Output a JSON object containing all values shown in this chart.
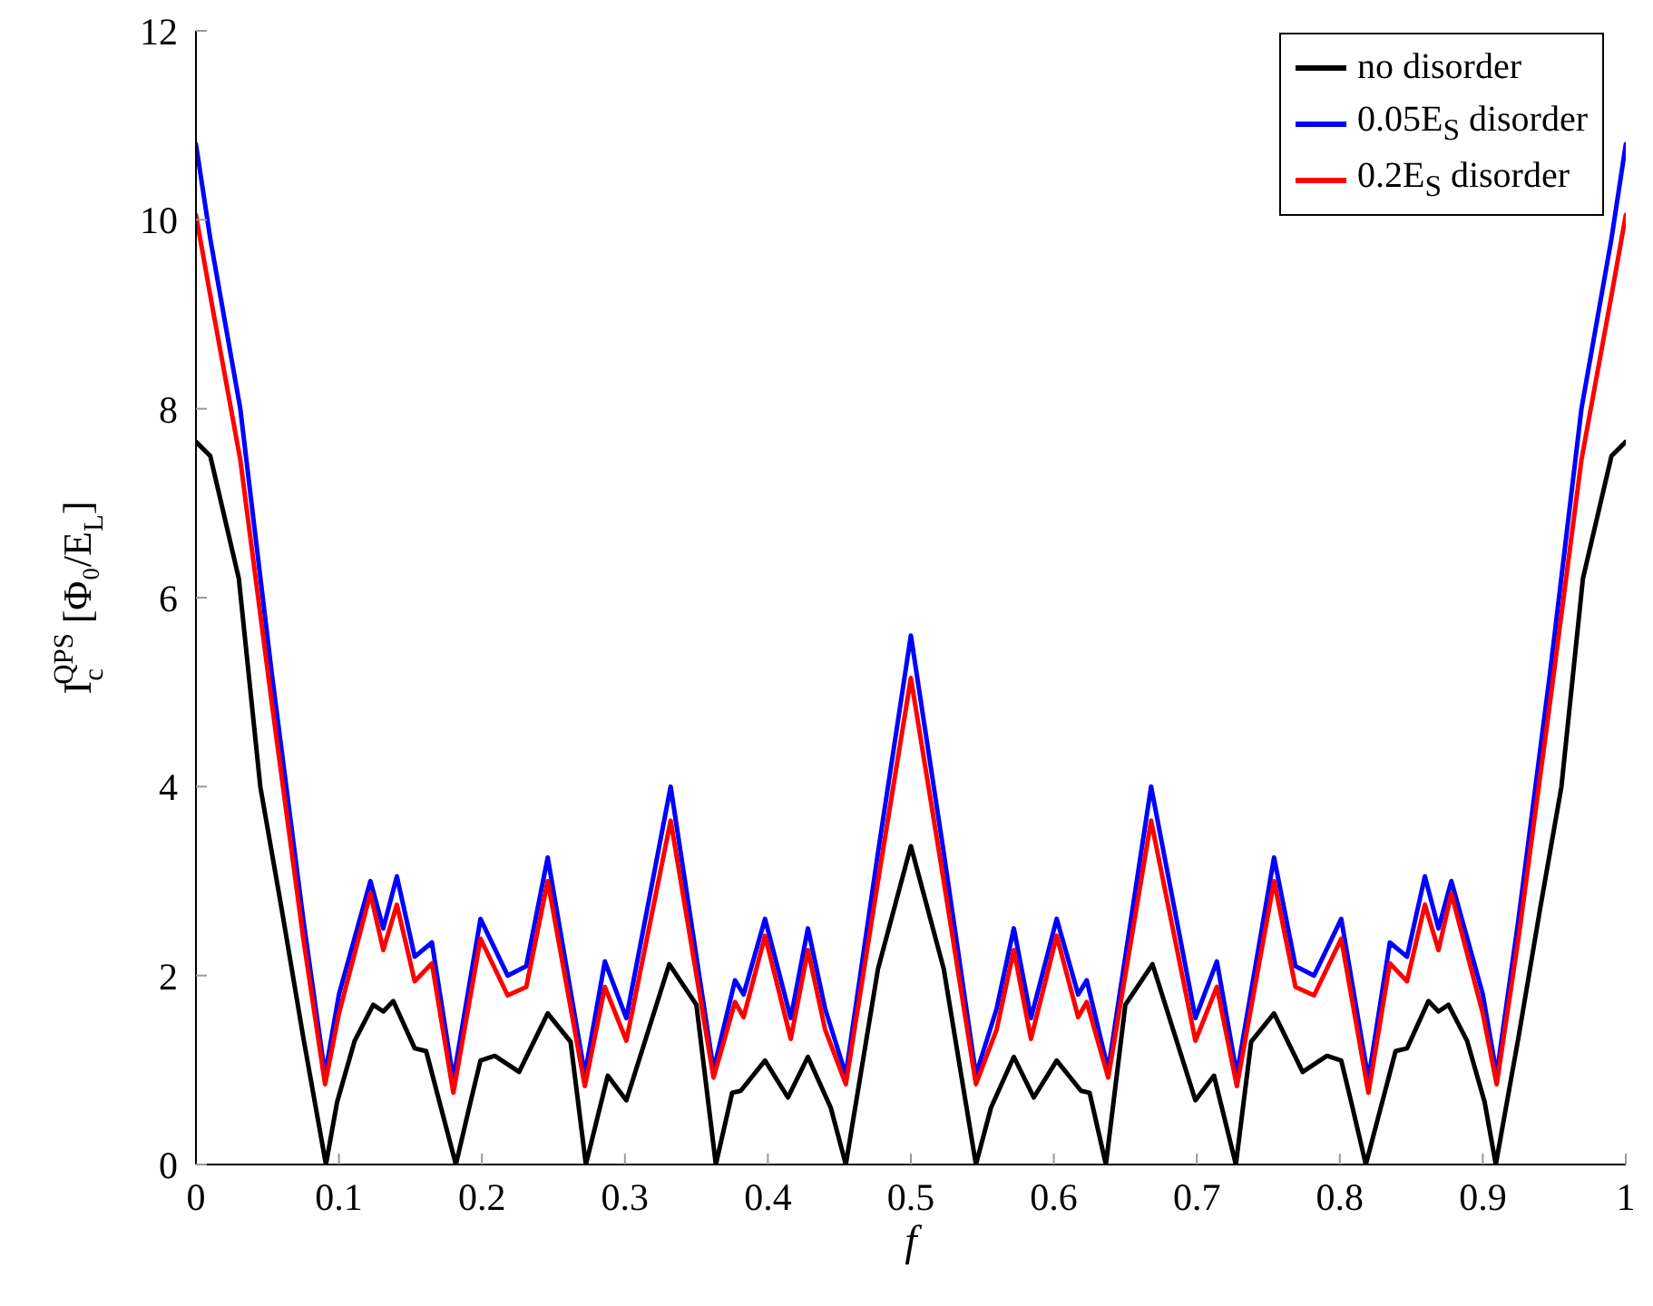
{
  "chart_data": {
    "type": "line",
    "xlabel": "f",
    "ylabel": "I$_{c}$$^{QPS}$ [Φ₀/E$_{L}$]",
    "xlim": [
      0,
      1
    ],
    "xticks": [
      0,
      0.1,
      0.2,
      0.3,
      0.4,
      0.5,
      0.6,
      0.7,
      0.8,
      0.9,
      1
    ],
    "ylim": [
      0,
      12
    ],
    "yticks": [
      0,
      2,
      4,
      6,
      8,
      10,
      12
    ],
    "grid": false,
    "legend": "top right",
    "marker": "none",
    "line_style": "solid",
    "series": [
      {
        "name": "no disorder",
        "color": "#000000",
        "x": [
          0,
          0.01,
          0.03,
          0.045,
          0.06,
          0.075,
          0.0909,
          0.0987,
          0.111,
          0.124,
          0.131,
          0.138,
          0.153,
          0.161,
          0.1818,
          0.192,
          0.199,
          0.209,
          0.226,
          0.246,
          0.262,
          0.2727,
          0.288,
          0.301,
          0.331,
          0.35,
          0.3636,
          0.375,
          0.381,
          0.398,
          0.414,
          0.428,
          0.444,
          0.4545,
          0.477,
          0.5,
          0.523,
          0.5455,
          0.556,
          0.572,
          0.586,
          0.602,
          0.619,
          0.625,
          0.6364,
          0.65,
          0.669,
          0.699,
          0.712,
          0.7273,
          0.738,
          0.754,
          0.774,
          0.791,
          0.801,
          0.808,
          0.8182,
          0.839,
          0.847,
          0.862,
          0.869,
          0.876,
          0.889,
          0.9013,
          0.9091,
          0.925,
          0.94,
          0.955,
          0.97,
          0.99,
          1
        ],
        "values": [
          7.65,
          7.5,
          6.2,
          4.0,
          2.7,
          1.35,
          0,
          0.66,
          1.31,
          1.69,
          1.62,
          1.73,
          1.23,
          1.2,
          0,
          0.66,
          1.1,
          1.15,
          0.98,
          1.6,
          1.3,
          0,
          0.94,
          0.68,
          2.12,
          1.69,
          0,
          0.76,
          0.78,
          1.1,
          0.71,
          1.14,
          0.6,
          0,
          2.07,
          3.37,
          2.07,
          0,
          0.6,
          1.14,
          0.71,
          1.1,
          0.78,
          0.76,
          0,
          1.69,
          2.12,
          0.68,
          0.94,
          0,
          1.3,
          1.6,
          0.98,
          1.15,
          1.1,
          0.66,
          0,
          1.2,
          1.23,
          1.73,
          1.62,
          1.69,
          1.31,
          0.66,
          0,
          1.35,
          2.7,
          4.0,
          6.2,
          7.5,
          7.65
        ]
      },
      {
        "name": "0.05E$_{S}$ disorder",
        "color": "#0000ff",
        "x": [
          0,
          0.01,
          0.031,
          0.053,
          0.075,
          0.0903,
          0.1,
          0.122,
          0.131,
          0.1405,
          0.153,
          0.165,
          0.18,
          0.199,
          0.218,
          0.231,
          0.246,
          0.272,
          0.286,
          0.301,
          0.332,
          0.362,
          0.377,
          0.383,
          0.398,
          0.416,
          0.428,
          0.44,
          0.4545,
          0.477,
          0.5,
          0.523,
          0.5455,
          0.56,
          0.572,
          0.584,
          0.602,
          0.617,
          0.623,
          0.638,
          0.668,
          0.699,
          0.714,
          0.728,
          0.754,
          0.769,
          0.782,
          0.801,
          0.82,
          0.835,
          0.847,
          0.8595,
          0.869,
          0.878,
          0.9,
          0.9097,
          0.925,
          0.947,
          0.969,
          0.99,
          1
        ],
        "values": [
          10.8,
          9.8,
          8.0,
          5.2,
          2.6,
          0.95,
          1.8,
          3.0,
          2.5,
          3.05,
          2.2,
          2.35,
          0.9,
          2.6,
          2.0,
          2.1,
          3.25,
          0.95,
          2.15,
          1.55,
          4.0,
          1.0,
          1.95,
          1.8,
          2.6,
          1.55,
          2.5,
          1.65,
          0.95,
          3.3,
          5.6,
          3.3,
          0.95,
          1.65,
          2.5,
          1.55,
          2.6,
          1.8,
          1.95,
          1.0,
          4.0,
          1.55,
          2.15,
          0.95,
          3.25,
          2.1,
          2.0,
          2.6,
          0.9,
          2.35,
          2.2,
          3.05,
          2.5,
          3.0,
          1.8,
          0.95,
          2.6,
          5.2,
          8.0,
          9.8,
          10.8
        ]
      },
      {
        "name": "0.2E$_{S}$ disorder",
        "color": "#ff0000",
        "x": [
          0,
          0.01,
          0.031,
          0.053,
          0.075,
          0.0903,
          0.1,
          0.122,
          0.131,
          0.1405,
          0.153,
          0.165,
          0.18,
          0.199,
          0.218,
          0.231,
          0.246,
          0.272,
          0.286,
          0.301,
          0.332,
          0.362,
          0.377,
          0.383,
          0.398,
          0.416,
          0.428,
          0.44,
          0.4545,
          0.477,
          0.5,
          0.523,
          0.5455,
          0.56,
          0.572,
          0.584,
          0.602,
          0.617,
          0.623,
          0.638,
          0.668,
          0.699,
          0.714,
          0.728,
          0.754,
          0.769,
          0.782,
          0.801,
          0.82,
          0.835,
          0.847,
          0.8595,
          0.869,
          0.878,
          0.9,
          0.9097,
          0.925,
          0.947,
          0.969,
          0.99,
          1
        ],
        "values": [
          10.05,
          9.2,
          7.46,
          4.89,
          2.4,
          0.85,
          1.6,
          2.87,
          2.27,
          2.75,
          1.94,
          2.13,
          0.76,
          2.39,
          1.79,
          1.88,
          3.0,
          0.83,
          1.88,
          1.31,
          3.64,
          0.92,
          1.72,
          1.56,
          2.42,
          1.33,
          2.27,
          1.43,
          0.85,
          3.0,
          5.15,
          3.0,
          0.85,
          1.43,
          2.27,
          1.33,
          2.42,
          1.56,
          1.72,
          0.92,
          3.64,
          1.31,
          1.88,
          0.83,
          3.0,
          1.88,
          1.79,
          2.39,
          0.76,
          2.13,
          1.94,
          2.75,
          2.27,
          2.87,
          1.6,
          0.85,
          2.4,
          4.89,
          7.46,
          9.2,
          10.05
        ]
      }
    ]
  }
}
